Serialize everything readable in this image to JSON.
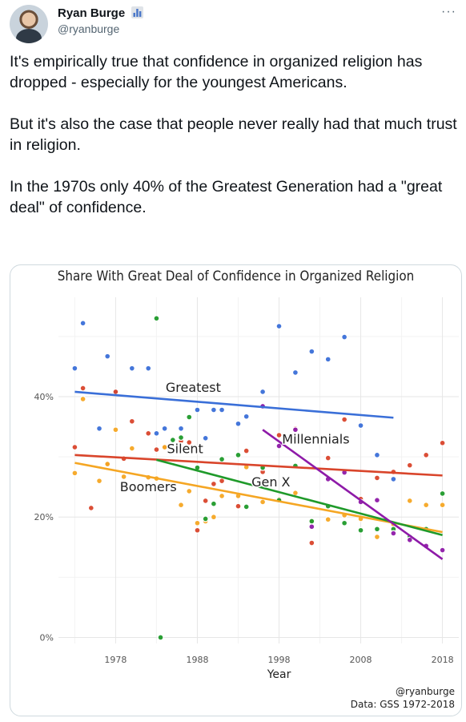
{
  "tweet": {
    "author_name": "Ryan Burge",
    "author_handle": "@ryanburge",
    "more_label": "···",
    "paragraphs": [
      "It's empirically true that confidence in organized religion has dropped - especially for the youngest Americans.",
      "But it's also the case that people never really had that much trust in religion.",
      "In the 1970s only 40% of the Greatest Generation had a \"great deal\" of confidence."
    ]
  },
  "chart_data": {
    "type": "scatter",
    "title": "Share With Great Deal of Confidence in Organized Religion",
    "xlabel": "Year",
    "ylabel": "",
    "xlim": [
      1971,
      2020
    ],
    "ylim": [
      -0.01,
      0.565
    ],
    "x_ticks": [
      1978,
      1988,
      1998,
      2008,
      2018
    ],
    "y_ticks": [
      {
        "value": 0,
        "label": "0%"
      },
      {
        "value": 0.2,
        "label": "20%"
      },
      {
        "value": 0.4,
        "label": "40%"
      }
    ],
    "grid": true,
    "legend": "none",
    "credit_handle": "@ryanburge",
    "credit_source": "Data: GSS 1972-2018",
    "series": [
      {
        "name": "Greatest",
        "color": "#3a6fd8",
        "label_at": {
          "x": 1987.5,
          "y": 0.408
        },
        "trend": {
          "x": [
            1973,
            2012
          ],
          "y": [
            0.408,
            0.365
          ]
        },
        "points": [
          [
            1973,
            0.447
          ],
          [
            1974,
            0.522
          ],
          [
            1976,
            0.347
          ],
          [
            1977,
            0.467
          ],
          [
            1978,
            0.408
          ],
          [
            1980,
            0.447
          ],
          [
            1982,
            0.447
          ],
          [
            1983,
            0.339
          ],
          [
            1984,
            0.347
          ],
          [
            1986,
            0.347
          ],
          [
            1988,
            0.378
          ],
          [
            1989,
            0.331
          ],
          [
            1990,
            0.378
          ],
          [
            1991,
            0.378
          ],
          [
            1993,
            0.355
          ],
          [
            1994,
            0.367
          ],
          [
            1996,
            0.408
          ],
          [
            1996,
            0.383
          ],
          [
            1998,
            0.517
          ],
          [
            2000,
            0.44
          ],
          [
            2002,
            0.475
          ],
          [
            2004,
            0.462
          ],
          [
            2006,
            0.499
          ],
          [
            2008,
            0.352
          ],
          [
            2010,
            0.303
          ],
          [
            2012,
            0.263
          ]
        ]
      },
      {
        "name": "Silent",
        "color": "#d9452b",
        "label_at": {
          "x": 1986.5,
          "y": 0.306
        },
        "trend": {
          "x": [
            1973,
            2018
          ],
          "y": [
            0.303,
            0.269
          ]
        },
        "points": [
          [
            1973,
            0.316
          ],
          [
            1974,
            0.414
          ],
          [
            1975,
            0.215
          ],
          [
            1977,
            0.288
          ],
          [
            1978,
            0.408
          ],
          [
            1979,
            0.297
          ],
          [
            1980,
            0.359
          ],
          [
            1982,
            0.339
          ],
          [
            1983,
            0.312
          ],
          [
            1984,
            0.316
          ],
          [
            1986,
            0.326
          ],
          [
            1987,
            0.324
          ],
          [
            1988,
            0.178
          ],
          [
            1989,
            0.227
          ],
          [
            1990,
            0.255
          ],
          [
            1991,
            0.26
          ],
          [
            1993,
            0.218
          ],
          [
            1994,
            0.31
          ],
          [
            1996,
            0.275
          ],
          [
            1998,
            0.336
          ],
          [
            2000,
            0.347
          ],
          [
            2002,
            0.157
          ],
          [
            2004,
            0.298
          ],
          [
            2006,
            0.362
          ],
          [
            2008,
            0.23
          ],
          [
            2010,
            0.265
          ],
          [
            2012,
            0.275
          ],
          [
            2014,
            0.286
          ],
          [
            2016,
            0.303
          ],
          [
            2018,
            0.323
          ]
        ]
      },
      {
        "name": "Boomers",
        "color": "#f5a623",
        "label_at": {
          "x": 1982,
          "y": 0.243
        },
        "trend": {
          "x": [
            1973,
            2018
          ],
          "y": [
            0.29,
            0.175
          ]
        },
        "points": [
          [
            1973,
            0.273
          ],
          [
            1974,
            0.396
          ],
          [
            1976,
            0.26
          ],
          [
            1977,
            0.288
          ],
          [
            1978,
            0.345
          ],
          [
            1979,
            0.267
          ],
          [
            1980,
            0.314
          ],
          [
            1982,
            0.266
          ],
          [
            1983,
            0.264
          ],
          [
            1984,
            0.316
          ],
          [
            1986,
            0.22
          ],
          [
            1987,
            0.243
          ],
          [
            1988,
            0.19
          ],
          [
            1989,
            0.193
          ],
          [
            1990,
            0.2
          ],
          [
            1991,
            0.235
          ],
          [
            1993,
            0.235
          ],
          [
            1994,
            0.283
          ],
          [
            1996,
            0.225
          ],
          [
            1998,
            0.23
          ],
          [
            2000,
            0.24
          ],
          [
            2002,
            0.194
          ],
          [
            2004,
            0.196
          ],
          [
            2006,
            0.203
          ],
          [
            2008,
            0.197
          ],
          [
            2010,
            0.167
          ],
          [
            2012,
            0.188
          ],
          [
            2014,
            0.227
          ],
          [
            2016,
            0.22
          ],
          [
            2018,
            0.22
          ]
        ]
      },
      {
        "name": "Gen X",
        "color": "#1f9a2a",
        "label_at": {
          "x": 1997,
          "y": 0.251
        },
        "trend": {
          "x": [
            1983,
            2018
          ],
          "y": [
            0.295,
            0.17
          ]
        },
        "points": [
          [
            1983,
            0.53
          ],
          [
            1983.5,
            0.0
          ],
          [
            1985,
            0.328
          ],
          [
            1986,
            0.332
          ],
          [
            1987,
            0.366
          ],
          [
            1988,
            0.282
          ],
          [
            1989,
            0.197
          ],
          [
            1990,
            0.222
          ],
          [
            1991,
            0.296
          ],
          [
            1993,
            0.303
          ],
          [
            1994,
            0.217
          ],
          [
            1996,
            0.282
          ],
          [
            1998,
            0.228
          ],
          [
            2000,
            0.285
          ],
          [
            2002,
            0.193
          ],
          [
            2004,
            0.218
          ],
          [
            2006,
            0.19
          ],
          [
            2008,
            0.178
          ],
          [
            2010,
            0.18
          ],
          [
            2012,
            0.18
          ],
          [
            2014,
            0.167
          ],
          [
            2016,
            0.18
          ],
          [
            2018,
            0.239
          ]
        ]
      },
      {
        "name": "Millennials",
        "color": "#8e1aa8",
        "label_at": {
          "x": 2002.5,
          "y": 0.322
        },
        "trend": {
          "x": [
            1996,
            2018
          ],
          "y": [
            0.345,
            0.13
          ]
        },
        "points": [
          [
            1996,
            0.384
          ],
          [
            1998,
            0.318
          ],
          [
            2000,
            0.345
          ],
          [
            2002,
            0.184
          ],
          [
            2004,
            0.263
          ],
          [
            2006,
            0.274
          ],
          [
            2008,
            0.225
          ],
          [
            2010,
            0.228
          ],
          [
            2012,
            0.173
          ],
          [
            2014,
            0.162
          ],
          [
            2016,
            0.152
          ],
          [
            2018,
            0.145
          ]
        ]
      }
    ]
  }
}
